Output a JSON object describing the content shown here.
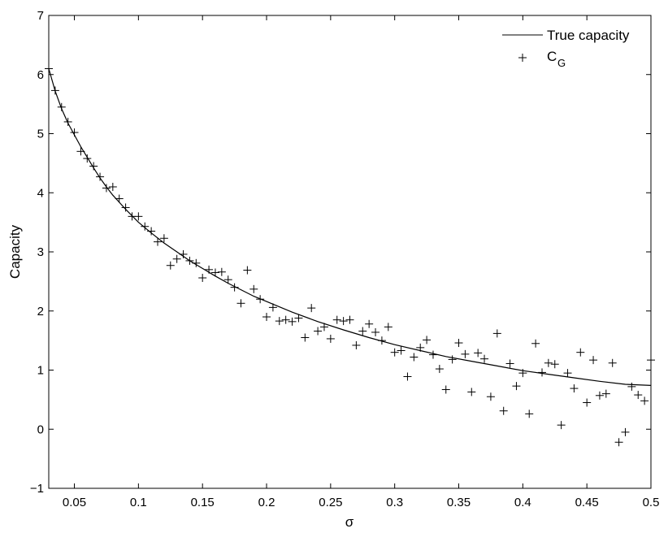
{
  "chart_data": {
    "type": "scatter",
    "title": "",
    "xlabel": "σ",
    "ylabel": "Capacity",
    "xlim": [
      0.03,
      0.5
    ],
    "ylim": [
      -1,
      7
    ],
    "grid": false,
    "legend_position": "top-right",
    "x_ticks": [
      0.05,
      0.1,
      0.15,
      0.2,
      0.25,
      0.3,
      0.35,
      0.4,
      0.45,
      0.5
    ],
    "x_tick_labels": [
      "0.05",
      "0.1",
      "0.15",
      "0.2",
      "0.25",
      "0.3",
      "0.35",
      "0.4",
      "0.45",
      "0.5"
    ],
    "y_ticks": [
      -1,
      0,
      1,
      2,
      3,
      4,
      5,
      6,
      7
    ],
    "y_tick_labels": [
      "−1",
      "0",
      "1",
      "2",
      "3",
      "4",
      "5",
      "6",
      "7"
    ],
    "series": [
      {
        "name": "True capacity",
        "style": "line",
        "color": "#000000",
        "x": [
          0.03,
          0.035,
          0.04,
          0.045,
          0.05,
          0.055,
          0.06,
          0.065,
          0.07,
          0.075,
          0.08,
          0.085,
          0.09,
          0.095,
          0.1,
          0.11,
          0.12,
          0.13,
          0.14,
          0.15,
          0.16,
          0.17,
          0.18,
          0.19,
          0.2,
          0.22,
          0.24,
          0.26,
          0.28,
          0.3,
          0.32,
          0.34,
          0.36,
          0.38,
          0.4,
          0.42,
          0.44,
          0.46,
          0.48,
          0.5
        ],
        "y": [
          6.1,
          5.72,
          5.42,
          5.18,
          4.98,
          4.78,
          4.6,
          4.42,
          4.25,
          4.1,
          3.96,
          3.84,
          3.72,
          3.61,
          3.5,
          3.32,
          3.15,
          3.0,
          2.85,
          2.72,
          2.59,
          2.47,
          2.36,
          2.25,
          2.16,
          1.98,
          1.82,
          1.68,
          1.55,
          1.43,
          1.33,
          1.23,
          1.15,
          1.07,
          0.99,
          0.93,
          0.87,
          0.81,
          0.76,
          0.74
        ]
      },
      {
        "name": "C",
        "name_subscript": "G",
        "style": "marker",
        "marker": "+",
        "color": "#000000",
        "x": [
          0.03,
          0.035,
          0.04,
          0.045,
          0.05,
          0.055,
          0.06,
          0.065,
          0.07,
          0.075,
          0.08,
          0.085,
          0.09,
          0.095,
          0.1,
          0.105,
          0.11,
          0.115,
          0.12,
          0.125,
          0.13,
          0.135,
          0.14,
          0.145,
          0.15,
          0.155,
          0.16,
          0.165,
          0.17,
          0.175,
          0.18,
          0.185,
          0.19,
          0.195,
          0.2,
          0.205,
          0.21,
          0.215,
          0.22,
          0.225,
          0.23,
          0.235,
          0.24,
          0.245,
          0.25,
          0.255,
          0.26,
          0.265,
          0.27,
          0.275,
          0.28,
          0.285,
          0.29,
          0.295,
          0.3,
          0.305,
          0.31,
          0.315,
          0.32,
          0.325,
          0.33,
          0.335,
          0.34,
          0.345,
          0.35,
          0.355,
          0.36,
          0.365,
          0.37,
          0.375,
          0.38,
          0.385,
          0.39,
          0.395,
          0.4,
          0.405,
          0.41,
          0.415,
          0.42,
          0.425,
          0.43,
          0.435,
          0.44,
          0.445,
          0.45,
          0.455,
          0.46,
          0.465,
          0.47,
          0.475,
          0.48,
          0.485,
          0.49,
          0.495,
          0.5
        ],
        "y": [
          6.1,
          5.73,
          5.45,
          5.2,
          5.02,
          4.7,
          4.58,
          4.45,
          4.27,
          4.08,
          4.1,
          3.9,
          3.75,
          3.6,
          3.6,
          3.43,
          3.35,
          3.17,
          3.23,
          2.77,
          2.88,
          2.96,
          2.85,
          2.81,
          2.56,
          2.7,
          2.65,
          2.66,
          2.53,
          2.4,
          2.13,
          2.69,
          2.37,
          2.2,
          1.9,
          2.06,
          1.83,
          1.85,
          1.82,
          1.88,
          1.55,
          2.05,
          1.66,
          1.73,
          1.53,
          1.85,
          1.83,
          1.85,
          1.42,
          1.66,
          1.78,
          1.64,
          1.5,
          1.73,
          1.3,
          1.33,
          0.89,
          1.22,
          1.38,
          1.51,
          1.26,
          1.02,
          0.67,
          1.18,
          1.46,
          1.27,
          0.63,
          1.29,
          1.19,
          0.55,
          1.62,
          0.31,
          1.11,
          0.73,
          0.95,
          0.26,
          1.45,
          0.96,
          1.12,
          1.1,
          0.07,
          0.95,
          0.69,
          1.3,
          0.45,
          1.17,
          0.57,
          0.6,
          1.12,
          -0.22,
          -0.05,
          0.72,
          0.58,
          0.48,
          1.17
        ]
      }
    ]
  }
}
